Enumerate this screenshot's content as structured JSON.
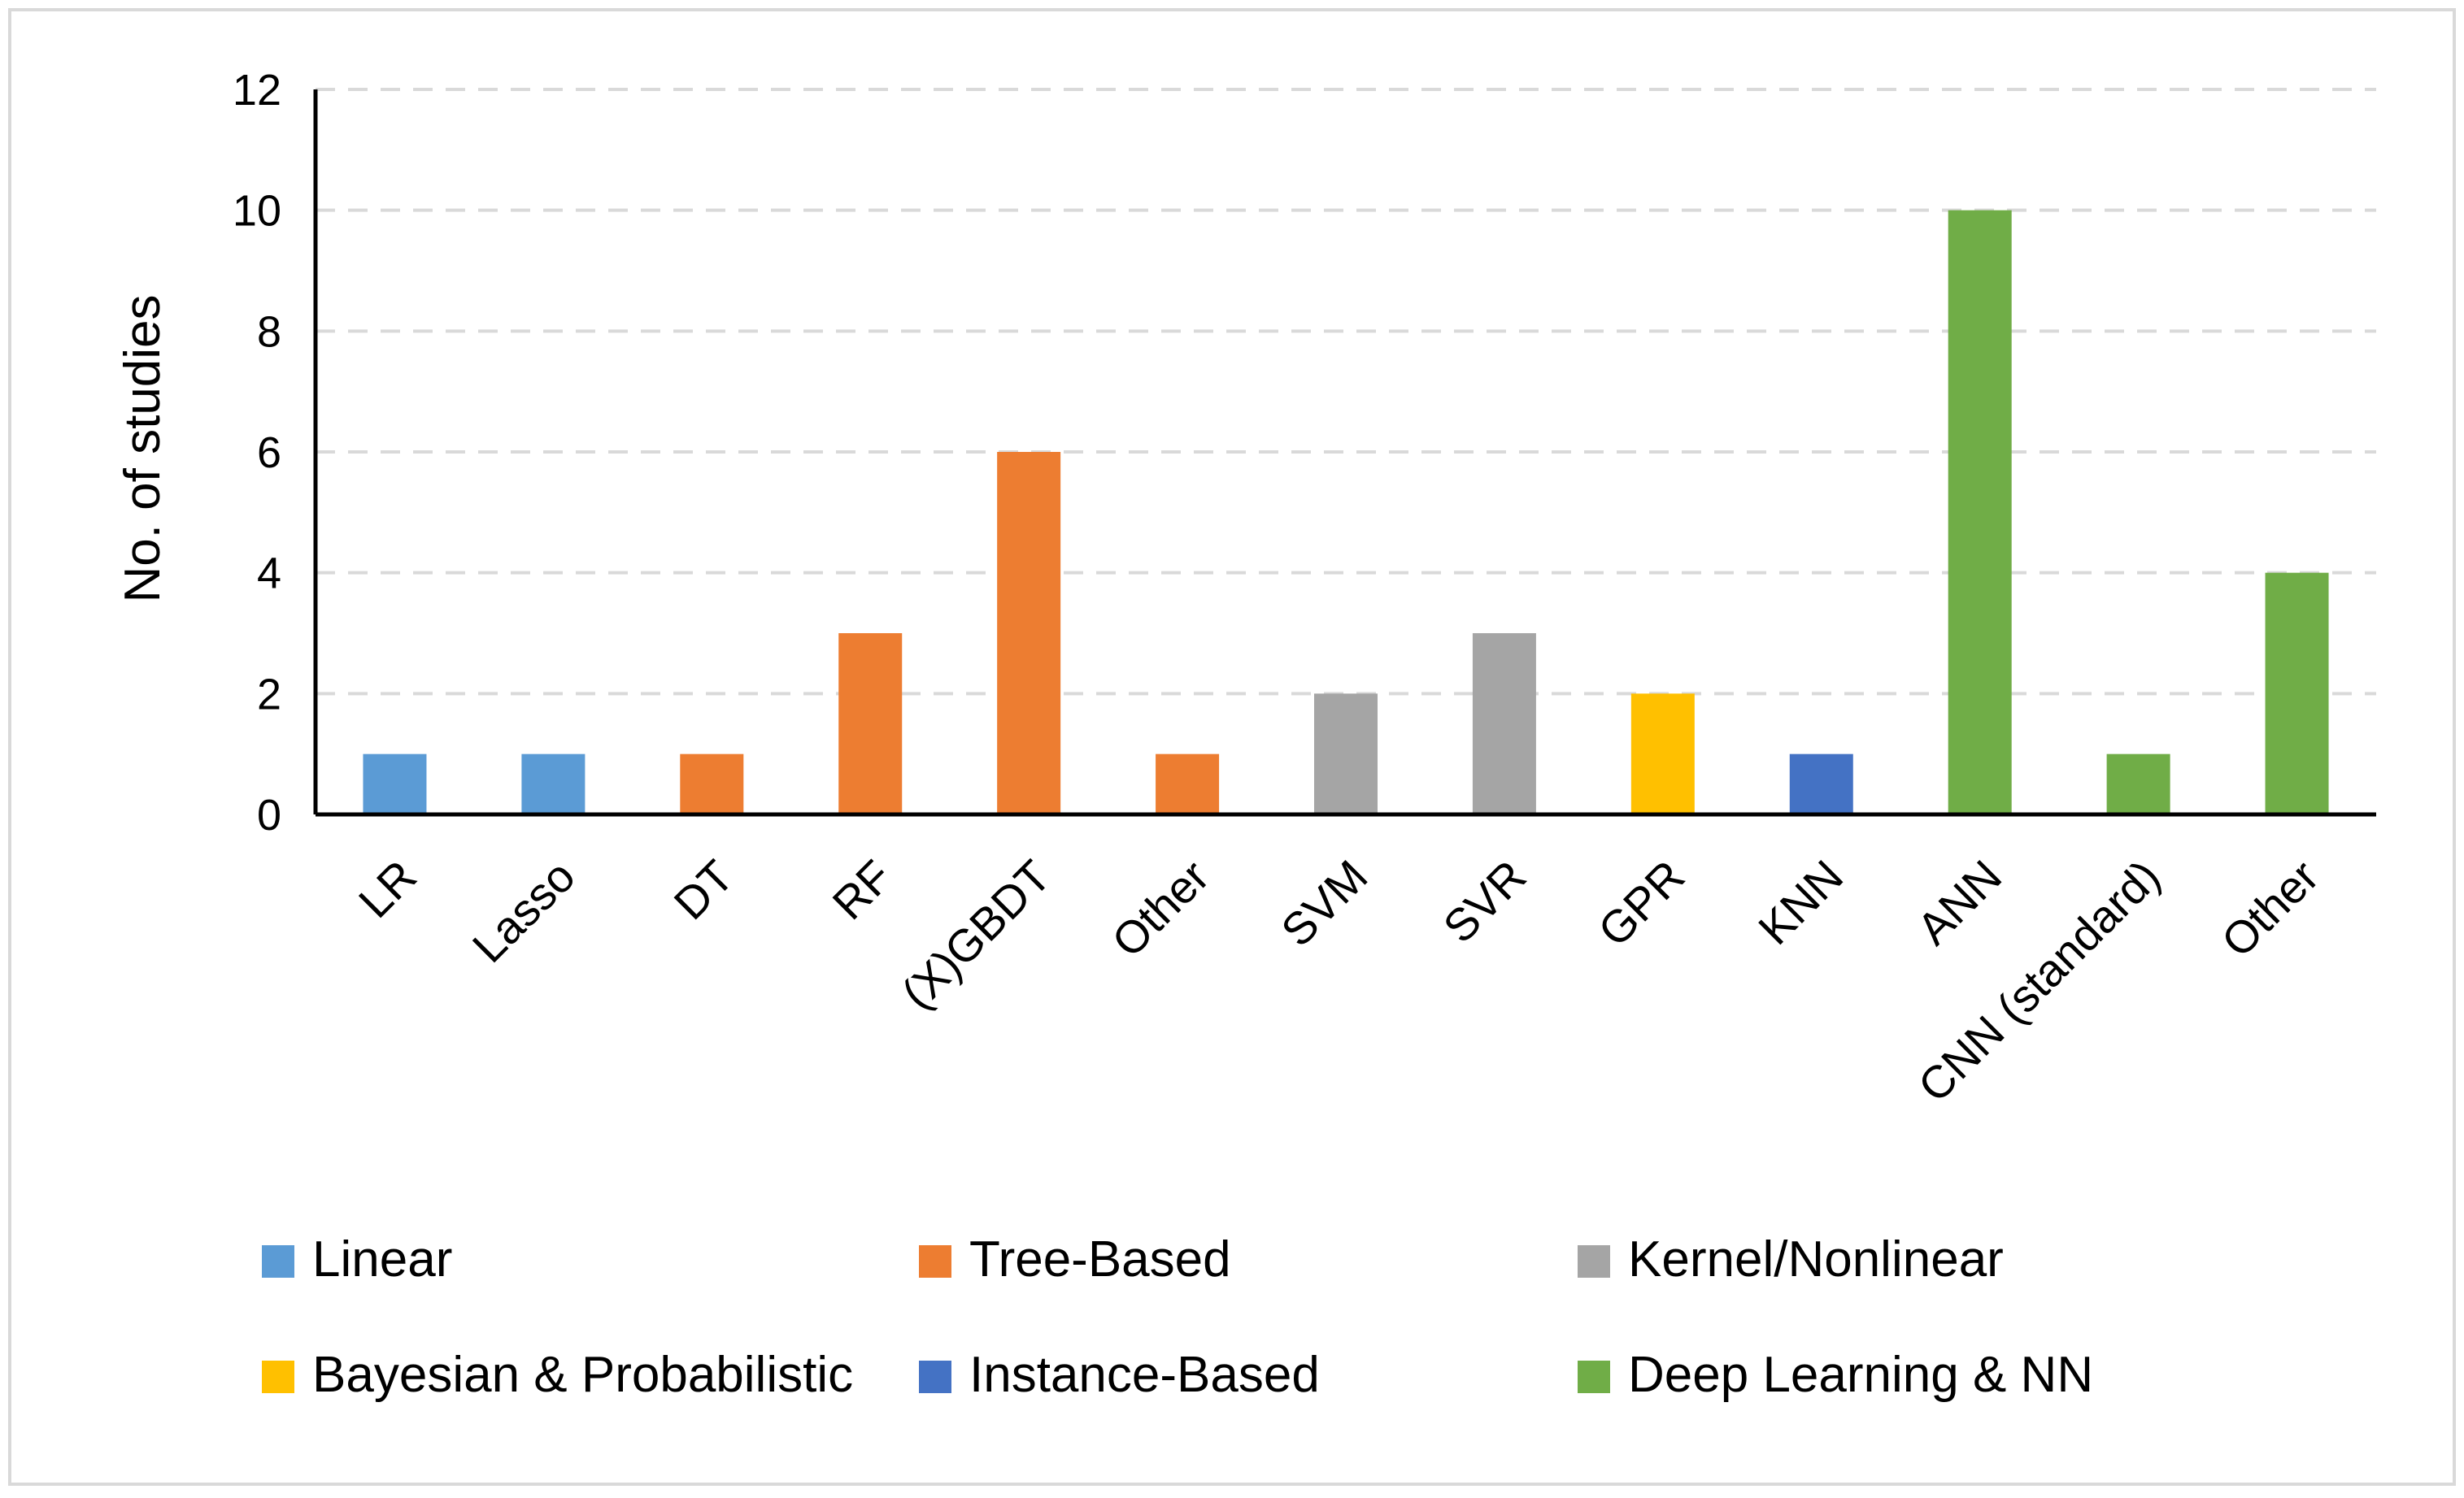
{
  "chart_data": {
    "type": "bar",
    "title": "",
    "xlabel": "",
    "ylabel": "No. of studies",
    "ylim": [
      0,
      12
    ],
    "yticks": [
      0,
      2,
      4,
      6,
      8,
      10,
      12
    ],
    "grid": "horizontal-dashed",
    "legend_position": "bottom",
    "categories": [
      "LR",
      "Lasso",
      "DT",
      "RF",
      "(X)GBDT",
      "Other",
      "SVM",
      "SVR",
      "GPR",
      "KNN",
      "ANN",
      "CNN (standard)",
      "Other"
    ],
    "values": [
      1,
      1,
      1,
      3,
      6,
      1,
      2,
      3,
      2,
      1,
      10,
      1,
      4
    ],
    "groups": [
      "Linear",
      "Linear",
      "Tree-Based",
      "Tree-Based",
      "Tree-Based",
      "Tree-Based",
      "Kernel/Nonlinear",
      "Kernel/Nonlinear",
      "Bayesian & Probabilistic",
      "Instance-Based",
      "Deep Learning & NN",
      "Deep Learning & NN",
      "Deep Learning & NN"
    ],
    "legend": [
      {
        "name": "Linear",
        "color": "#5B9BD5"
      },
      {
        "name": "Tree-Based",
        "color": "#ED7D31"
      },
      {
        "name": "Kernel/Nonlinear",
        "color": "#A5A5A5"
      },
      {
        "name": "Bayesian & Probabilistic",
        "color": "#FFC000"
      },
      {
        "name": "Instance-Based",
        "color": "#4472C4"
      },
      {
        "name": "Deep Learning & NN",
        "color": "#70AD47"
      }
    ]
  }
}
